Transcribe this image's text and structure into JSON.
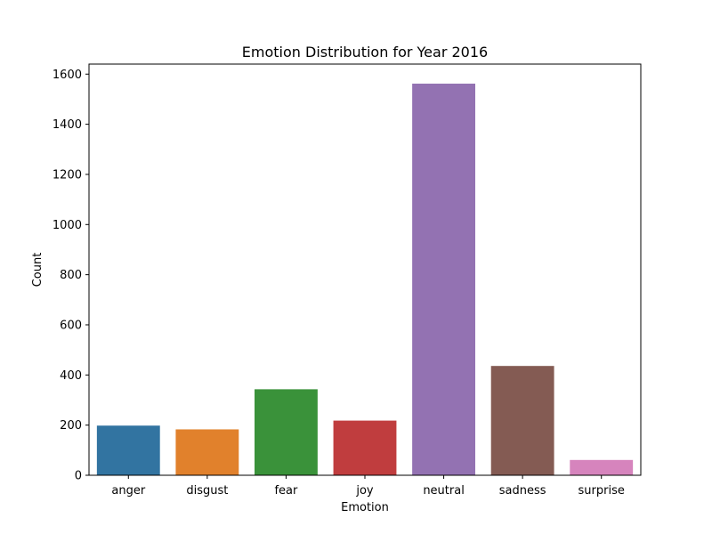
{
  "chart_data": {
    "type": "bar",
    "title": "Emotion Distribution for Year 2016",
    "xlabel": "Emotion",
    "ylabel": "Count",
    "categories": [
      "anger",
      "disgust",
      "fear",
      "joy",
      "neutral",
      "sadness",
      "surprise"
    ],
    "values": [
      198,
      183,
      343,
      218,
      1562,
      436,
      61
    ],
    "colors": [
      "#3274a1",
      "#e1812c",
      "#3a923a",
      "#c03d3e",
      "#9372b2",
      "#845b53",
      "#d684bd"
    ],
    "ylim": [
      0,
      1640
    ],
    "yticks": [
      0,
      200,
      400,
      600,
      800,
      1000,
      1200,
      1400,
      1600
    ],
    "grid": false,
    "legend": "none"
  }
}
